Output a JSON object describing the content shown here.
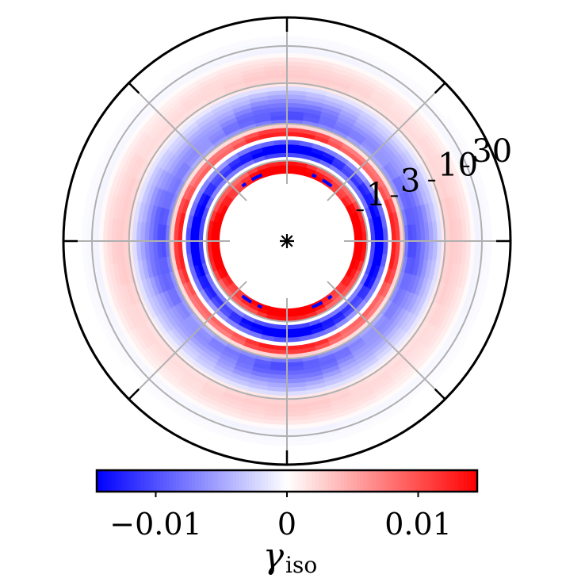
{
  "chart_data": {
    "type": "heatmap",
    "projection": "polar",
    "title": "",
    "radial_scale": "log",
    "radial_ticks": [
      {
        "value": 1,
        "label": "1"
      },
      {
        "value": 3,
        "label": "3"
      },
      {
        "value": 10,
        "label": "10"
      },
      {
        "value": 30,
        "label": "30"
      }
    ],
    "radial_range": [
      0.5,
      70
    ],
    "angular_gridlines_deg": [
      0,
      45,
      90,
      135,
      180,
      225,
      270,
      315
    ],
    "colorbar": {
      "label_main": "γ",
      "label_sub": "iso",
      "colormap": "bwr",
      "range": [
        -0.0145,
        0.0145
      ],
      "ticks": [
        {
          "value": -0.01,
          "label": "−0.01"
        },
        {
          "value": 0,
          "label": "0"
        },
        {
          "value": 0.01,
          "label": "0.01"
        }
      ]
    },
    "radial_profile": [
      {
        "r": 0.72,
        "value": 0.0145
      },
      {
        "r": 0.9,
        "value": 0.0135
      },
      {
        "r": 1.1,
        "value": -0.0045
      },
      {
        "r": 1.3,
        "value": -0.0145
      },
      {
        "r": 1.55,
        "value": -0.013
      },
      {
        "r": 1.85,
        "value": -0.004
      },
      {
        "r": 2.2,
        "value": 0.011
      },
      {
        "r": 2.6,
        "value": 0.0085
      },
      {
        "r": 3.1,
        "value": -0.006
      },
      {
        "r": 3.7,
        "value": -0.0085
      },
      {
        "r": 4.5,
        "value": -0.0075
      },
      {
        "r": 5.5,
        "value": -0.006
      },
      {
        "r": 6.7,
        "value": -0.004
      },
      {
        "r": 8.2,
        "value": -0.0025
      },
      {
        "r": 10,
        "value": 0.002
      },
      {
        "r": 12.5,
        "value": 0.0025
      },
      {
        "r": 16,
        "value": 0.002
      },
      {
        "r": 20,
        "value": 0.0012
      },
      {
        "r": 26,
        "value": -0.0006
      },
      {
        "r": 34,
        "value": -0.0003
      },
      {
        "r": 45,
        "value": 0.0
      }
    ],
    "dashed_contour": {
      "r": 0.75,
      "color": "#0000ff",
      "angles_deg": [
        60,
        120,
        240,
        300
      ]
    }
  }
}
